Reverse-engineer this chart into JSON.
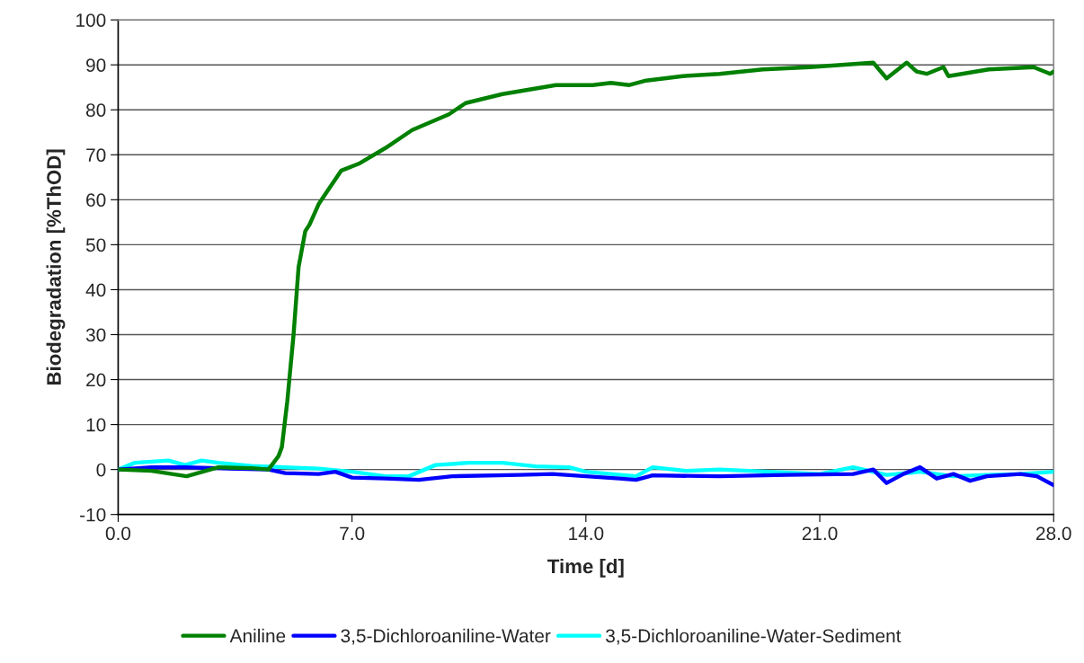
{
  "chart_data": {
    "type": "line",
    "xlabel": "Time [d]",
    "ylabel": "Biodegradation [%ThOD]",
    "xlim": [
      0,
      28
    ],
    "ylim": [
      -10,
      100
    ],
    "xticks": [
      {
        "value": 0,
        "label": "0.0"
      },
      {
        "value": 7,
        "label": "7.0"
      },
      {
        "value": 14,
        "label": "14.0"
      },
      {
        "value": 21,
        "label": "21.0"
      },
      {
        "value": 28,
        "label": "28.0"
      }
    ],
    "yticks": [
      -10,
      0,
      10,
      20,
      30,
      40,
      50,
      60,
      70,
      80,
      90,
      100
    ],
    "grid": "y",
    "legend": "bottom",
    "marker": "none",
    "line_style": "solid",
    "series": [
      {
        "name": "Aniline",
        "color": "#008000",
        "x": [
          0,
          1,
          2.05,
          3,
          4,
          4.5,
          4.8,
          4.9,
          5.06,
          5.25,
          5.4,
          5.6,
          5.73,
          6.0,
          6.27,
          6.68,
          7.2,
          8.0,
          8.8,
          9.9,
          10.4,
          11.5,
          13.1,
          14.2,
          14.75,
          15.3,
          15.8,
          16.9,
          18,
          19.3,
          20.7,
          22.6,
          23.0,
          23.6,
          23.9,
          24.2,
          24.7,
          24.85,
          26.06,
          27.4,
          27.9,
          28
        ],
        "values": [
          0,
          -0.3,
          -1.5,
          0.5,
          0.3,
          0,
          3,
          5,
          15,
          30,
          45,
          53,
          54.5,
          59,
          62,
          66.5,
          68,
          71.5,
          75.5,
          79,
          81.5,
          83.5,
          85.5,
          85.5,
          86,
          85.5,
          86.5,
          87.5,
          88,
          89,
          89.5,
          90.5,
          87,
          90.5,
          88.5,
          88,
          89.5,
          87.5,
          89,
          89.5,
          88,
          88.5
        ]
      },
      {
        "name": "3,5-Dichloroaniline-Water",
        "color": "#0000ff",
        "x": [
          0,
          1,
          2,
          3,
          4.5,
          5,
          6,
          6.5,
          7,
          8,
          9,
          10,
          12,
          13,
          15,
          15.5,
          16,
          18,
          20,
          22,
          22.6,
          23,
          23.5,
          24,
          24.5,
          25,
          25.5,
          26,
          27,
          27.5,
          28
        ],
        "values": [
          0,
          0.5,
          0.5,
          0.3,
          0,
          -0.8,
          -1,
          -0.5,
          -1.8,
          -2,
          -2.3,
          -1.5,
          -1.2,
          -1,
          -2,
          -2.3,
          -1.3,
          -1.5,
          -1.2,
          -1,
          0,
          -3,
          -1,
          0.5,
          -2,
          -1,
          -2.5,
          -1.5,
          -1,
          -1.5,
          -3.5
        ]
      },
      {
        "name": "3,5-Dichloroaniline-Water-Sediment",
        "color": "#00ffff",
        "x": [
          0,
          0.5,
          1.5,
          2,
          2.5,
          3,
          4,
          5,
          6,
          7,
          8,
          8.7,
          9.5,
          10.5,
          11.5,
          12.5,
          13.5,
          14,
          15.5,
          16,
          17,
          18,
          19.5,
          21,
          22,
          23,
          24,
          25,
          26,
          27,
          28
        ],
        "values": [
          0,
          1.5,
          2,
          1,
          2,
          1.5,
          0.8,
          0.5,
          0.2,
          -0.5,
          -1.5,
          -1.5,
          1,
          1.5,
          1.5,
          0.7,
          0.5,
          -0.5,
          -1.5,
          0.5,
          -0.3,
          0,
          -0.5,
          -1,
          0.5,
          -1.2,
          -0.5,
          -1.5,
          -1.2,
          -1,
          -0.5
        ]
      }
    ]
  }
}
